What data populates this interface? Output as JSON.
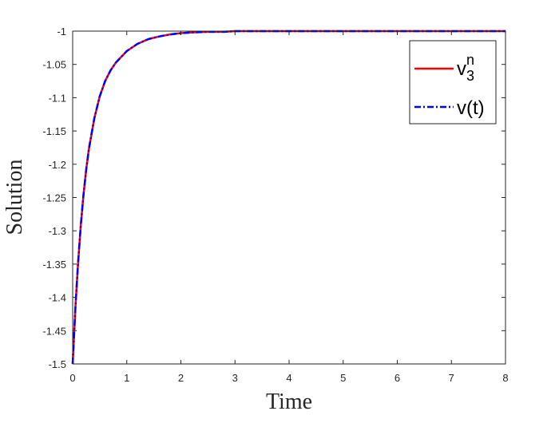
{
  "chart_data": {
    "type": "line",
    "title": "",
    "xlabel": "Time",
    "ylabel": "Solution",
    "xlim": [
      0,
      8
    ],
    "ylim": [
      -1.5,
      -1
    ],
    "xticks": [
      0,
      1,
      2,
      3,
      4,
      5,
      6,
      7,
      8
    ],
    "xtick_labels": [
      "0",
      "1",
      "2",
      "3",
      "4",
      "5",
      "6",
      "7",
      "8"
    ],
    "yticks": [
      -1.5,
      -1.45,
      -1.4,
      -1.35,
      -1.3,
      -1.25,
      -1.2,
      -1.15,
      -1.1,
      -1.05,
      -1
    ],
    "ytick_labels": [
      "-1.5",
      "-1.45",
      "-1.4",
      "-1.35",
      "-1.3",
      "-1.25",
      "-1.2",
      "-1.15",
      "-1.1",
      "-1.05",
      "-1"
    ],
    "grid": false,
    "legend_position": "top-right",
    "x": [
      0,
      0.05,
      0.1,
      0.15,
      0.2,
      0.25,
      0.3,
      0.4,
      0.5,
      0.6,
      0.7,
      0.8,
      1.0,
      1.2,
      1.4,
      1.6,
      1.8,
      2.0,
      2.2,
      2.5,
      2.8,
      3.0,
      3.5,
      4.0,
      5.0,
      6.0,
      7.0,
      8.0
    ],
    "series": [
      {
        "name": "v",
        "name_sub": "3",
        "name_sup": "n",
        "color": "#ff0000",
        "style": "solid",
        "values": [
          -1.5,
          -1.416,
          -1.348,
          -1.292,
          -1.246,
          -1.208,
          -1.177,
          -1.131,
          -1.098,
          -1.075,
          -1.059,
          -1.047,
          -1.03,
          -1.019,
          -1.012,
          -1.008,
          -1.005,
          -1.003,
          -1.002,
          -1.001,
          -1.001,
          -1.0,
          -1.0,
          -1.0,
          -1.0,
          -1.0,
          -1.0,
          -1.0
        ]
      },
      {
        "name": "v(t)",
        "color": "#0000ff",
        "style": "dashdot",
        "values": [
          -1.5,
          -1.416,
          -1.348,
          -1.292,
          -1.246,
          -1.208,
          -1.177,
          -1.131,
          -1.098,
          -1.075,
          -1.059,
          -1.047,
          -1.03,
          -1.019,
          -1.012,
          -1.008,
          -1.005,
          -1.003,
          -1.002,
          -1.001,
          -1.001,
          -1.0,
          -1.0,
          -1.0,
          -1.0,
          -1.0,
          -1.0,
          -1.0
        ]
      }
    ]
  }
}
